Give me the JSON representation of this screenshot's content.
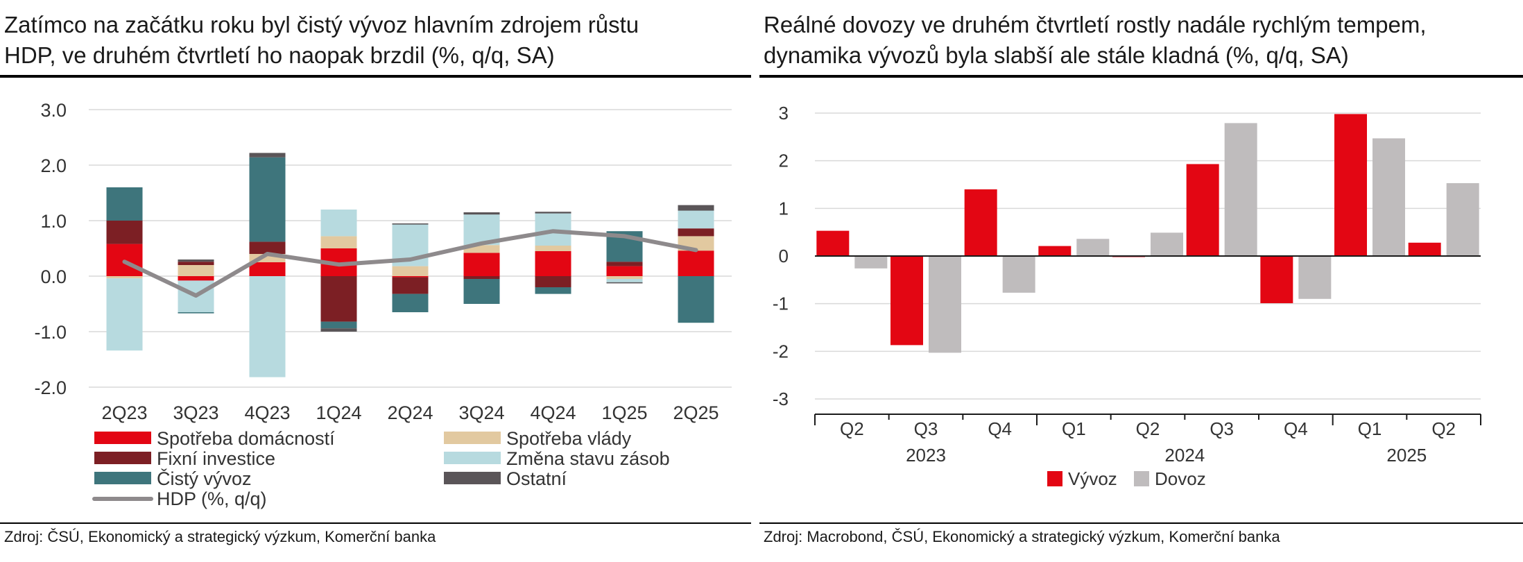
{
  "left": {
    "title_line1": "Zatímco na začátku roku byl čistý vývoz hlavním zdrojem růstu",
    "title_line2": "HDP, ve druhém čtvrtletí ho naopak brzdil (%, q/q, SA)",
    "source": "Zdroj: ČSÚ, Ekonomický a strategický výzkum, Komerční banka"
  },
  "right": {
    "title_line1": "Reálné dovozy ve druhém čtvrtletí rostly nadále rychlým tempem,",
    "title_line2": "dynamika vývozů byla slabší ale stále kladná (%, q/q, SA)",
    "source": "Zdroj: Macrobond, ČSÚ, Ekonomický a strategický výzkum, Komerční banka"
  },
  "chart_data": [
    {
      "type": "bar",
      "stacked": true,
      "categories": [
        "2Q23",
        "3Q23",
        "4Q23",
        "1Q24",
        "2Q24",
        "3Q24",
        "4Q24",
        "1Q25",
        "2Q25"
      ],
      "ylim": [
        -2.0,
        3.0
      ],
      "yticks": [
        "3.0",
        "2.0",
        "1.0",
        "0.0",
        "-1.0",
        "-2.0"
      ],
      "ytick_values": [
        3,
        2,
        1,
        0,
        -1,
        -2
      ],
      "grid": true,
      "legend_position": "bottom",
      "series": [
        {
          "name": "Spotřeba domácností",
          "color": "#e30613",
          "values": [
            0.58,
            -0.08,
            0.25,
            0.5,
            -0.02,
            0.42,
            0.45,
            0.18,
            0.46
          ]
        },
        {
          "name": "Spotřeba vlády",
          "color": "#e2c9a0",
          "values": [
            -0.04,
            0.2,
            0.15,
            0.22,
            0.18,
            0.14,
            0.1,
            -0.05,
            0.26
          ]
        },
        {
          "name": "Fixní investice",
          "color": "#7c1f24",
          "values": [
            0.42,
            0.06,
            0.22,
            -0.82,
            -0.3,
            -0.05,
            -0.2,
            0.08,
            0.14
          ]
        },
        {
          "name": "Změna stavu zásob",
          "color": "#b7dadf",
          "values": [
            -1.3,
            -0.57,
            -1.82,
            0.48,
            0.75,
            0.55,
            0.58,
            -0.06,
            0.32
          ]
        },
        {
          "name": "Čistý vývoz",
          "color": "#3e757c",
          "values": [
            0.6,
            -0.02,
            1.52,
            -0.12,
            -0.33,
            -0.45,
            -0.12,
            0.55,
            -0.84
          ]
        },
        {
          "name": "Ostatní",
          "color": "#5a5558",
          "values": [
            0.0,
            0.04,
            0.08,
            -0.06,
            0.02,
            0.04,
            0.03,
            -0.02,
            0.1
          ]
        }
      ],
      "line": {
        "name": "HDP (%, q/q)",
        "color": "#8e8a8c",
        "values": [
          0.26,
          -0.35,
          0.4,
          0.21,
          0.3,
          0.59,
          0.81,
          0.72,
          0.47
        ]
      }
    },
    {
      "type": "bar",
      "categories": [
        "Q2",
        "Q3",
        "Q4",
        "Q1",
        "Q2",
        "Q3",
        "Q4",
        "Q1",
        "Q2"
      ],
      "years": [
        {
          "label": "2023",
          "from": 0,
          "to": 2
        },
        {
          "label": "2024",
          "from": 3,
          "to": 6
        },
        {
          "label": "2025",
          "from": 7,
          "to": 8
        }
      ],
      "ylim": [
        -3,
        3
      ],
      "yticks": [
        "3",
        "2",
        "1",
        "0",
        "-1",
        "-2",
        "-3"
      ],
      "ytick_values": [
        3,
        2,
        1,
        0,
        -1,
        -2,
        -3
      ],
      "grid": true,
      "legend_position": "bottom",
      "series": [
        {
          "name": "Vývoz",
          "color": "#e30613",
          "values": [
            0.53,
            -1.87,
            1.4,
            0.21,
            -0.02,
            1.93,
            -0.99,
            2.98,
            0.28
          ]
        },
        {
          "name": "Dovoz",
          "color": "#bfbcbd",
          "values": [
            -0.26,
            -2.03,
            -0.77,
            0.36,
            0.49,
            2.79,
            -0.9,
            2.47,
            1.53
          ]
        }
      ]
    }
  ]
}
